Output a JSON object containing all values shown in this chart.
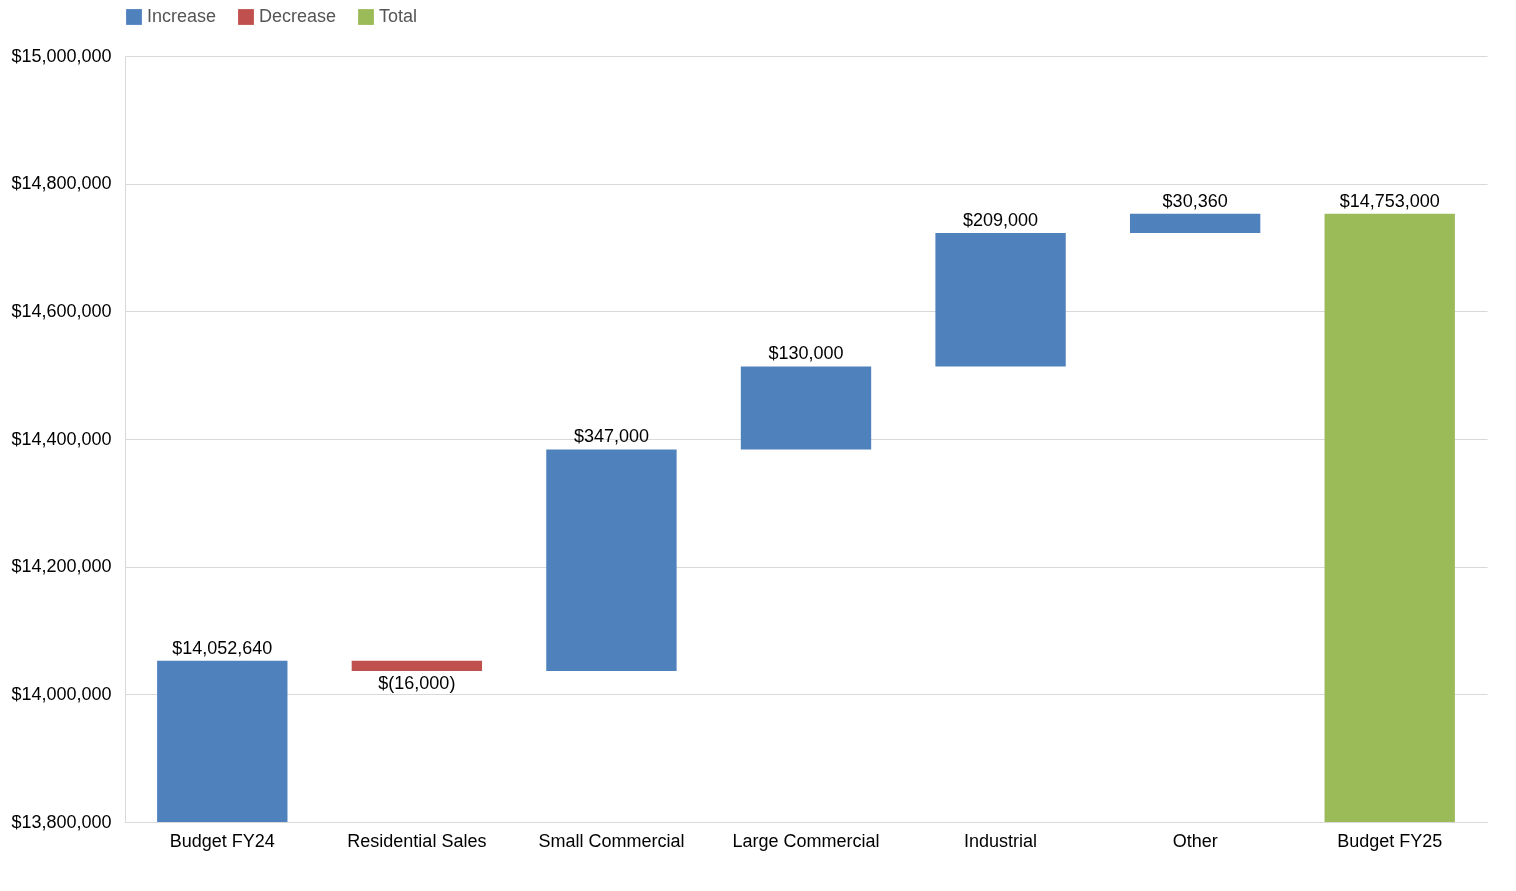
{
  "chart_data": {
    "type": "bar",
    "categories": [
      "Budget FY24",
      "Residential Sales",
      "Small Commercial",
      "Large Commercial",
      "Industrial",
      "Other",
      "Budget FY25"
    ],
    "series": [
      {
        "name": "Increase",
        "color": "#4f81bd",
        "values": [
          14052640,
          null,
          347000,
          130000,
          209000,
          30360,
          null
        ],
        "base": [
          null,
          null,
          14036640,
          14383640,
          14513640,
          14722640,
          null
        ],
        "value_labels": [
          "$14,052,640",
          null,
          "$347,000",
          "$130,000",
          "$209,000",
          "$30,360",
          null
        ]
      },
      {
        "name": "Decrease",
        "color": "#c0504d",
        "values": [
          null,
          -16000,
          null,
          null,
          null,
          null,
          null
        ],
        "base": [
          null,
          14052640,
          null,
          null,
          null,
          null,
          null
        ],
        "value_labels": [
          null,
          "$(16,000)",
          null,
          null,
          null,
          null,
          null
        ]
      },
      {
        "name": "Total",
        "color": "#9bbb59",
        "values": [
          null,
          null,
          null,
          null,
          null,
          null,
          14753000
        ],
        "value_labels": [
          null,
          null,
          null,
          null,
          null,
          null,
          "$14,753,000"
        ]
      }
    ],
    "ylim": [
      13800000,
      15000000
    ],
    "yticks": [
      {
        "value": 13800000,
        "label": "$13,800,000"
      },
      {
        "value": 14000000,
        "label": "$14,000,000"
      },
      {
        "value": 14200000,
        "label": "$14,200,000"
      },
      {
        "value": 14400000,
        "label": "$14,400,000"
      },
      {
        "value": 14600000,
        "label": "$14,600,000"
      },
      {
        "value": 14800000,
        "label": "$14,800,000"
      },
      {
        "value": 15000000,
        "label": "$15,000,000"
      }
    ],
    "grid": "y",
    "legend": "top"
  }
}
